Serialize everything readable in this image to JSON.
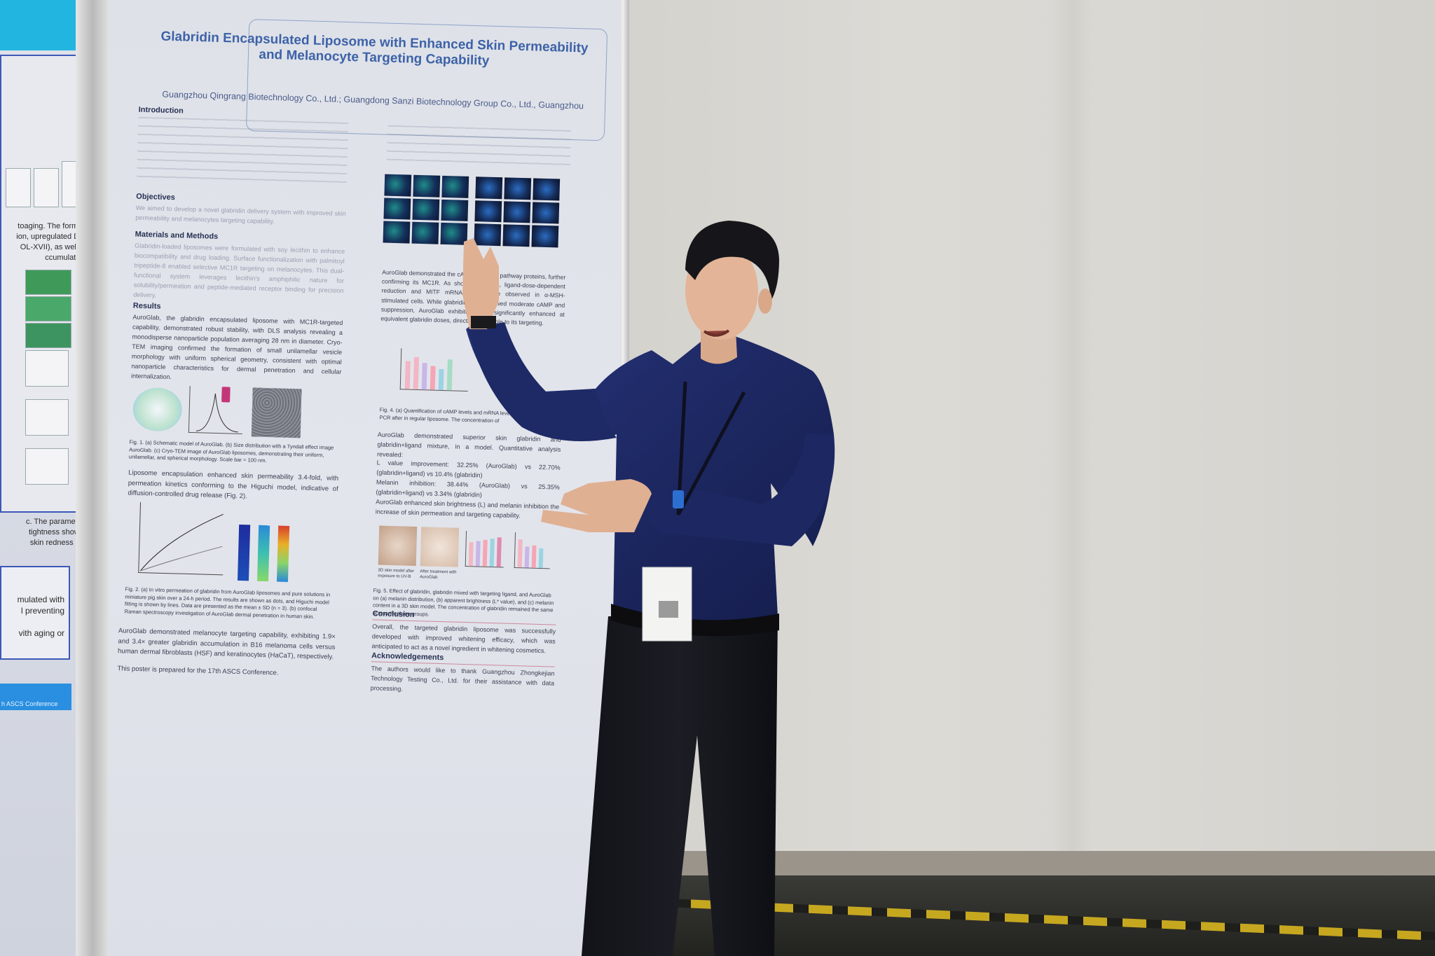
{
  "left_poster": {
    "text_a": [
      "toaging. The formula",
      "ion, upregulated DEJ",
      "OL-XVII), as well as",
      "ccumulation."
    ],
    "text_b": [
      "c. The parameters",
      "tightness showed",
      "skin redness and"
    ],
    "text_c": [
      "mulated with",
      "l preventing",
      "vith aging or"
    ],
    "footer": "h ASCS Conference"
  },
  "poster": {
    "title_line1": "Glabridin Encapsulated Liposome with Enhanced Skin Permeability",
    "title_line2": "and Melanocyte Targeting Capability",
    "affiliation": "Guangzhou Qingrang Biotechnology Co., Ltd.; Guangdong Sanzi Biotechnology Group Co., Ltd., Guangzhou",
    "intro_heading": "Introduction",
    "objectives_heading": "Objectives",
    "objectives_text": "We aimed to develop a novel glabridin delivery system with improved skin permeability and melanocytes targeting capability.",
    "methods_heading": "Materials and Methods",
    "methods_text": "Glabridin-loaded liposomes were formulated with soy lecithin to enhance biocompatibility and drug loading. Surface functionalization with palmitoyl tripeptide-8 enabled selective MC1R targeting on melanocytes. This dual-functional system leverages lecithin's amphiphilic nature for solubility/permeation and peptide-mediated receptor binding for precision delivery.",
    "results_heading": "Results",
    "results_text": "AuroGlab, the glabridin encapsulated liposome with MC1R-targeted capability, demonstrated robust stability, with DLS analysis revealing a monodisperse nanoparticle population averaging 28 nm in diameter. Cryo-TEM imaging confirmed the formation of small unilamellar vesicle morphology with uniform spherical geometry, consistent with optimal nanoparticle characteristics for dermal penetration and cellular internalization.",
    "fig1_caption": "Fig. 1. (a) Schematic model of AuroGlab. (b) Size distribution with a Tyndall effect image AuroGlab. (c) Cryo-TEM image of AuroGlab liposomes, demonstrating their uniform, unilamellar, and spherical morphology. Scale bar = 100 nm.",
    "permeability_text": "Liposome encapsulation enhanced skin permeability 3.4-fold, with permeation kinetics conforming to the Higuchi model, indicative of diffusion-controlled drug release (Fig. 2).",
    "fig2_caption": "Fig. 2. (a) In vitro permeation of glabridin from AuroGlab liposomes and pure solutions in miniature pig skin over a 24-h period. The results are shown as dots, and Higuchi model fitting is shown by lines. Data are presented as the mean ± SD (n = 3). (b) confocal Raman spectroscopy investigation of AuroGlab dermal penetration in human skin.",
    "targeting_text": "AuroGlab demonstrated melanocyte targeting capability, exhibiting 1.9× and 3.4× greater glabridin accumulation in B16 melanoma cells versus human dermal fibroblasts (HSF) and keratinocytes (HaCaT), respectively.",
    "conference_note": "This poster is prepared for the 17th ASCS Conference.",
    "fig4_caption": "Fig. 4. (a) Quantification of cAMP levels and mRNA levels through quantitative PCR after in regular liposome. The concentration of",
    "skin_text": "AuroGlab demonstrated superior skin glabridin and glabridin+ligand mixture, in a model. Quantitative analysis revealed:",
    "l_value": "L value improvement: 32.25% (AuroGlab) vs 22.70% (glabridin+ligand) vs 10.4% (glabridin)",
    "melanin": "Melanin inhibition: 38.44% (AuroGlab) vs 25.35% (glabridin+ligand) vs 3.34% (glabridin)",
    "enhanced": "AuroGlab enhanced skin brightness (L) and melanin inhibition the increase of skin permeation and targeting capability.",
    "fig5_caption": "Fig. 5. Effect of glabridin, glabridin mixed with targeting ligand, and AuroGlab on (a) melanin distribution, (b) apparent brightness (L* value), and (c) melanin content in a 3D skin model. The concentration of glabridin remained the same across the three groups.",
    "conclusion_heading": "Conclusion",
    "conclusion_text": "Overall, the targeted glabridin liposome was successfully developed with improved whitening efficacy, which was anticipated to act as a novel ingredient in whitening cosmetics.",
    "ack_heading": "Acknowledgements",
    "ack_text": "The authors would like to thank Guangzhou Zhongkejian Technology Testing Co., Ltd. for their assistance with data processing.",
    "right_col_text": "AuroGlab demonstrated the cAMP signaling pathway proteins, further confirming its MC1R. As shown in Fig. 4, ligand-dose-dependent reduction and MITF mRNA levels were observed in α-MSH-stimulated cells. While glabridin alone showed moderate cAMP and suppression, AuroGlab exhibited more significantly enhanced at equivalent glabridin doses, directly attributable to its targeting.",
    "skin_img_labels": [
      "3D skin model after exposure to UV-B",
      "After treatment with AuroGlab"
    ]
  },
  "colors": {
    "poster_title": "#3d62a8",
    "accent_rule": "#c3627a",
    "left_header": "#22b5e0",
    "shirt": "#1c2660"
  }
}
